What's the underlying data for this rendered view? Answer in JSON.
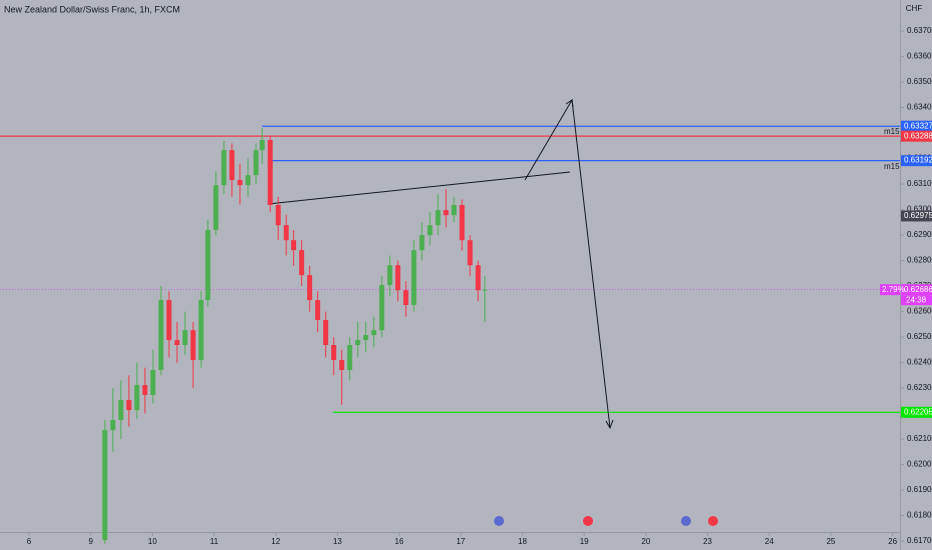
{
  "chart_data": {
    "type": "candlestick",
    "title": "New Zealand Dollar/Swiss Franc, 1h, FXCM",
    "currency": "CHF",
    "up_color": "#4caf50",
    "down_color": "#f23645",
    "xlim": [
      -0.47,
      14.12
    ],
    "ylim": [
      0.61665,
      0.63822
    ],
    "xticks": [
      {
        "value": 0,
        "label": "6"
      },
      {
        "value": 1,
        "label": "9"
      },
      {
        "value": 2,
        "label": "10"
      },
      {
        "value": 3,
        "label": "11"
      },
      {
        "value": 4,
        "label": "12"
      },
      {
        "value": 5,
        "label": "13"
      },
      {
        "value": 6,
        "label": "16"
      },
      {
        "value": 7,
        "label": "17"
      },
      {
        "value": 8,
        "label": "18"
      },
      {
        "value": 9,
        "label": "19"
      },
      {
        "value": 10,
        "label": "20"
      },
      {
        "value": 11,
        "label": "23"
      },
      {
        "value": 12,
        "label": "24"
      },
      {
        "value": 13,
        "label": "25"
      },
      {
        "value": 14,
        "label": "26"
      }
    ],
    "yticks": [
      {
        "value": 0.617,
        "label": "0.61700"
      },
      {
        "value": 0.618,
        "label": "0.61800"
      },
      {
        "value": 0.619,
        "label": "0.61900"
      },
      {
        "value": 0.62,
        "label": "0.62000"
      },
      {
        "value": 0.621,
        "label": "0.62100"
      },
      {
        "value": 0.622,
        "label": "0.62200"
      },
      {
        "value": 0.623,
        "label": "0.62300"
      },
      {
        "value": 0.624,
        "label": "0.62400"
      },
      {
        "value": 0.625,
        "label": "0.62500"
      },
      {
        "value": 0.626,
        "label": "0.62600"
      },
      {
        "value": 0.627,
        "label": "0.62700"
      },
      {
        "value": 0.628,
        "label": "0.62800"
      },
      {
        "value": 0.629,
        "label": "0.62900"
      },
      {
        "value": 0.63,
        "label": "0.63000"
      },
      {
        "value": 0.631,
        "label": "0.63100"
      },
      {
        "value": 0.632,
        "label": "0.63200"
      },
      {
        "value": 0.633,
        "label": "0.63300"
      },
      {
        "value": 0.634,
        "label": "0.63400"
      },
      {
        "value": 0.635,
        "label": "0.63500"
      },
      {
        "value": 0.636,
        "label": "0.63600"
      },
      {
        "value": 0.637,
        "label": "0.63700"
      }
    ],
    "x": [
      1.23,
      1.36,
      1.49,
      1.62,
      1.75,
      1.88,
      2.01,
      2.14,
      2.27,
      2.4,
      2.53,
      2.66,
      2.79,
      2.9,
      3.03,
      3.16,
      3.29,
      3.42,
      3.55,
      3.68,
      3.78,
      3.91,
      4.04,
      4.17,
      4.29,
      4.42,
      4.55,
      4.68,
      4.81,
      4.94,
      5.07,
      5.2,
      5.33,
      5.46,
      5.59,
      5.72,
      5.85,
      5.98,
      6.11,
      6.24,
      6.37,
      6.5,
      6.63,
      6.76,
      6.89,
      7.02,
      7.15,
      7.28,
      7.39
    ],
    "open": [
      0.61704,
      0.62135,
      0.62175,
      0.62253,
      0.62214,
      0.62312,
      0.62273,
      0.62371,
      0.62645,
      0.62488,
      0.62469,
      0.62527,
      0.6241,
      0.62645,
      0.6292,
      0.63096,
      0.63233,
      0.63116,
      0.63096,
      0.63135,
      0.63233,
      0.63273,
      0.63018,
      0.62939,
      0.6288,
      0.62841,
      0.62743,
      0.62645,
      0.62567,
      0.62469,
      0.6241,
      0.62371,
      0.62469,
      0.62488,
      0.62508,
      0.62527,
      0.62704,
      0.62782,
      0.62684,
      0.62626,
      0.62841,
      0.629,
      0.62939,
      0.62998,
      0.62978,
      0.63018,
      0.6288,
      0.62782,
      0.62684
    ],
    "high": [
      0.62175,
      0.623,
      0.6233,
      0.6235,
      0.624,
      0.6238,
      0.6245,
      0.627,
      0.6268,
      0.6256,
      0.626,
      0.6256,
      0.6268,
      0.6296,
      0.6315,
      0.6327,
      0.6326,
      0.6318,
      0.632,
      0.6326,
      0.6332,
      0.6329,
      0.6305,
      0.6298,
      0.6292,
      0.6288,
      0.6278,
      0.6268,
      0.626,
      0.625,
      0.6245,
      0.625,
      0.6256,
      0.6256,
      0.6258,
      0.6274,
      0.6282,
      0.628,
      0.6272,
      0.6288,
      0.6295,
      0.6299,
      0.6306,
      0.6308,
      0.6305,
      0.6304,
      0.629,
      0.628,
      0.6274
    ],
    "low": [
      0.6169,
      0.6205,
      0.621,
      0.6215,
      0.6218,
      0.622,
      0.6224,
      0.6235,
      0.6242,
      0.624,
      0.6243,
      0.623,
      0.6238,
      0.6262,
      0.629,
      0.6306,
      0.6305,
      0.6302,
      0.6305,
      0.631,
      0.6318,
      0.6299,
      0.6288,
      0.6282,
      0.6278,
      0.627,
      0.626,
      0.6252,
      0.6242,
      0.6235,
      0.62235,
      0.6233,
      0.6242,
      0.6244,
      0.6246,
      0.625,
      0.6266,
      0.6264,
      0.6258,
      0.626,
      0.628,
      0.6286,
      0.629,
      0.6293,
      0.6295,
      0.6284,
      0.6274,
      0.6264,
      0.6256
    ],
    "close": [
      0.62135,
      0.62175,
      0.62253,
      0.62214,
      0.62312,
      0.62273,
      0.62371,
      0.62645,
      0.62488,
      0.62469,
      0.62527,
      0.6241,
      0.62645,
      0.6292,
      0.63096,
      0.63233,
      0.63116,
      0.63096,
      0.63135,
      0.63233,
      0.63273,
      0.63018,
      0.62939,
      0.6288,
      0.62841,
      0.62743,
      0.62645,
      0.62567,
      0.62469,
      0.6241,
      0.62371,
      0.62469,
      0.62488,
      0.62508,
      0.62527,
      0.62704,
      0.62782,
      0.62684,
      0.62626,
      0.62841,
      0.629,
      0.62939,
      0.62998,
      0.62978,
      0.63018,
      0.6288,
      0.62782,
      0.62684,
      0.62686
    ],
    "levels": [
      {
        "value": 0.63327,
        "color": "#2962ff",
        "x_start": 3.78
      },
      {
        "value": 0.63288,
        "color": "#f23645"
      },
      {
        "value": 0.63192,
        "color": "#2962ff",
        "x_start": 3.87
      },
      {
        "value": 0.62686,
        "color": "#e040fb",
        "dashed": true
      },
      {
        "value": 0.62205,
        "color": "#00e600",
        "x_start": 4.93
      }
    ],
    "last_price_marker": {
      "value": 0.62975,
      "color": "#434651"
    },
    "countdown": "24:38",
    "change": "2.79%",
    "annotations": [
      "m15",
      "m15"
    ]
  }
}
